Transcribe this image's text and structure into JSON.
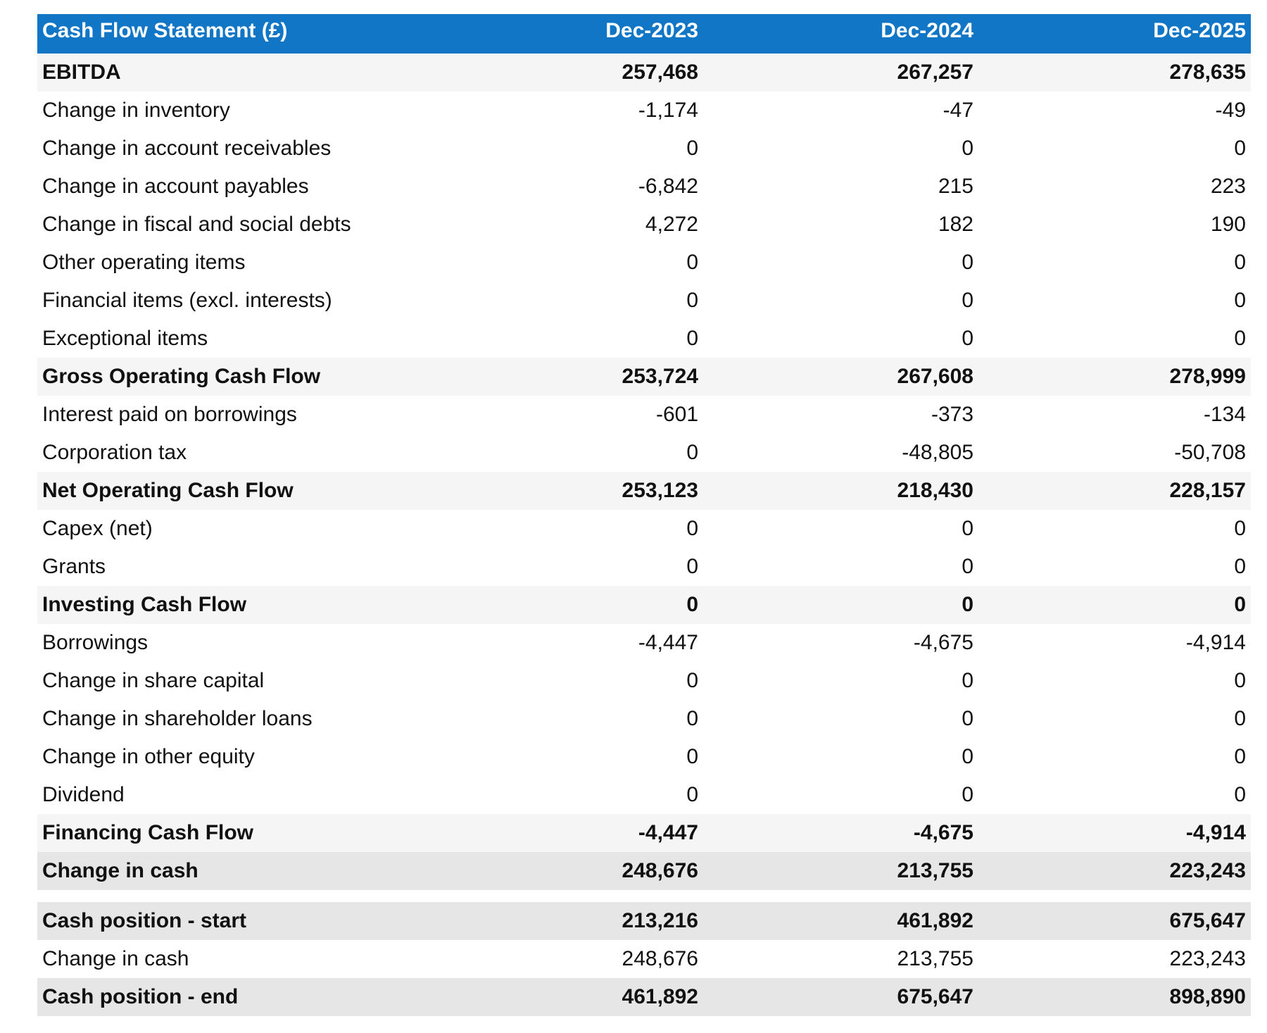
{
  "table": {
    "header": [
      "Cash Flow Statement (£)",
      "Dec-2023",
      "Dec-2024",
      "Dec-2025"
    ],
    "rows": [
      [
        "EBITDA",
        "257,468",
        "267,257",
        "278,635"
      ],
      [
        "Change in inventory",
        "-1,174",
        "-47",
        "-49"
      ],
      [
        "Change in account receivables",
        "0",
        "0",
        "0"
      ],
      [
        "Change in account payables",
        "-6,842",
        "215",
        "223"
      ],
      [
        "Change in fiscal and social debts",
        "4,272",
        "182",
        "190"
      ],
      [
        "Other operating items",
        "0",
        "0",
        "0"
      ],
      [
        "Financial items (excl. interests)",
        "0",
        "0",
        "0"
      ],
      [
        "Exceptional items",
        "0",
        "0",
        "0"
      ],
      [
        "Gross Operating Cash Flow",
        "253,724",
        "267,608",
        "278,999"
      ],
      [
        "Interest paid on borrowings",
        "-601",
        "-373",
        "-134"
      ],
      [
        "Corporation tax",
        "0",
        "-48,805",
        "-50,708"
      ],
      [
        "Net Operating Cash Flow",
        "253,123",
        "218,430",
        "228,157"
      ],
      [
        "Capex (net)",
        "0",
        "0",
        "0"
      ],
      [
        "Grants",
        "0",
        "0",
        "0"
      ],
      [
        "Investing Cash Flow",
        "0",
        "0",
        "0"
      ],
      [
        "Borrowings",
        "-4,447",
        "-4,675",
        "-4,914"
      ],
      [
        "Change in share capital",
        "0",
        "0",
        "0"
      ],
      [
        "Change in shareholder loans",
        "0",
        "0",
        "0"
      ],
      [
        "Change in other equity",
        "0",
        "0",
        "0"
      ],
      [
        "Dividend",
        "0",
        "0",
        "0"
      ],
      [
        "Financing Cash Flow",
        "-4,447",
        "-4,675",
        "-4,914"
      ],
      [
        "Change in cash",
        "248,676",
        "213,755",
        "223,243"
      ]
    ]
  },
  "summary": {
    "rows": [
      [
        "Cash position - start",
        "213,216",
        "461,892",
        "675,647"
      ],
      [
        "Change in cash",
        "248,676",
        "213,755",
        "223,243"
      ],
      [
        "Cash position - end",
        "461,892",
        "675,647",
        "898,890"
      ]
    ]
  }
}
